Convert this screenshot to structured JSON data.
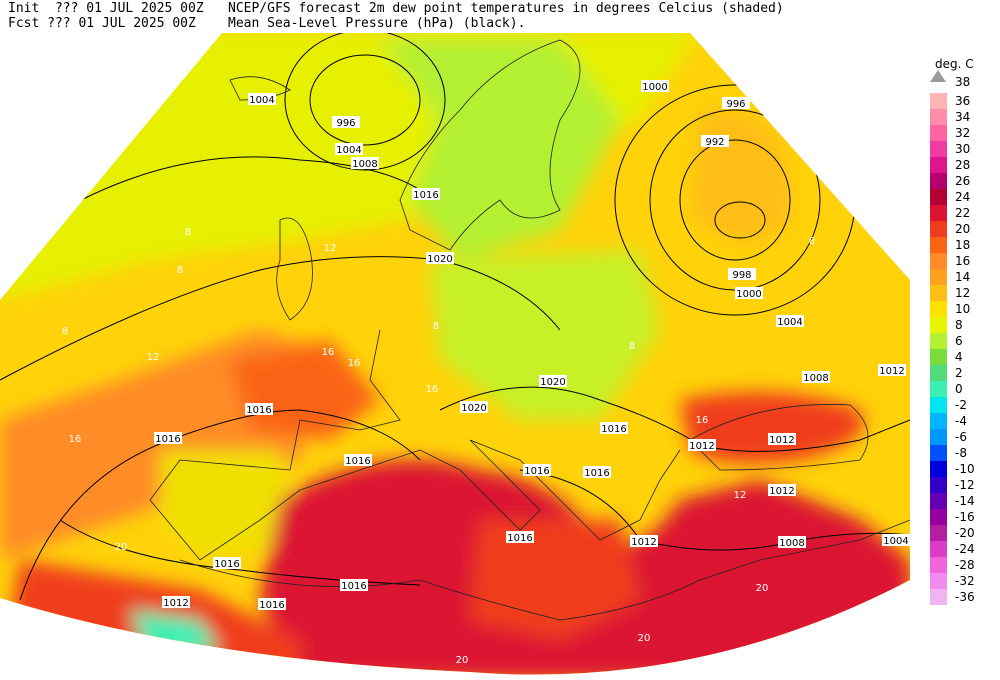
{
  "header": {
    "init": "Init  ??? 01 JUL 2025 00Z",
    "fcst": "Fcst ??? 01 JUL 2025 00Z",
    "title": "NCEP/GFS forecast 2m dew point temperatures in degrees Celcius (shaded)",
    "subtitle": "Mean Sea-Level Pressure (hPa) (black)."
  },
  "colorbar": {
    "unit": "deg. C",
    "top_label": "38",
    "levels": [
      {
        "label": "36",
        "color": "#ffb4b4"
      },
      {
        "label": "34",
        "color": "#ff8ca8"
      },
      {
        "label": "32",
        "color": "#ff64a0"
      },
      {
        "label": "30",
        "color": "#f03ca0"
      },
      {
        "label": "28",
        "color": "#e0148c"
      },
      {
        "label": "26",
        "color": "#b4006e"
      },
      {
        "label": "24",
        "color": "#b40032"
      },
      {
        "label": "22",
        "color": "#dc1432"
      },
      {
        "label": "20",
        "color": "#f03c1e"
      },
      {
        "label": "18",
        "color": "#fa6414"
      },
      {
        "label": "16",
        "color": "#ff8c28"
      },
      {
        "label": "14",
        "color": "#ffa01e"
      },
      {
        "label": "12",
        "color": "#ffbe14"
      },
      {
        "label": "10",
        "color": "#ffe100"
      },
      {
        "label": "8",
        "color": "#e6f500"
      },
      {
        "label": "6",
        "color": "#b4f032"
      },
      {
        "label": "4",
        "color": "#78dc3c"
      },
      {
        "label": "2",
        "color": "#50dc78"
      },
      {
        "label": "0",
        "color": "#3cf0b4"
      },
      {
        "label": "-2",
        "color": "#00e6f0"
      },
      {
        "label": "-4",
        "color": "#00b4ff"
      },
      {
        "label": "-6",
        "color": "#0096ff"
      },
      {
        "label": "-8",
        "color": "#0050ff"
      },
      {
        "label": "-10",
        "color": "#0000dc"
      },
      {
        "label": "-12",
        "color": "#3200c8"
      },
      {
        "label": "-14",
        "color": "#6400b4"
      },
      {
        "label": "-16",
        "color": "#9600a0"
      },
      {
        "label": "-20",
        "color": "#b41ea0"
      },
      {
        "label": "-24",
        "color": "#dc3cc8"
      },
      {
        "label": "-28",
        "color": "#f064dc"
      },
      {
        "label": "-32",
        "color": "#f08cf0"
      },
      {
        "label": "-36",
        "color": "#f0b4f0"
      }
    ]
  },
  "map": {
    "pressure_labels": [
      "1004",
      "996",
      "1004",
      "1008",
      "1000",
      "996",
      "992",
      "998",
      "1000",
      "1004",
      "1008",
      "1012",
      "1016",
      "1016",
      "1016",
      "1020",
      "1020",
      "1016",
      "1012",
      "1012",
      "1012",
      "1016",
      "1016",
      "1016",
      "1012",
      "1016",
      "1016",
      "1016",
      "1012",
      "1008",
      "1004",
      "1016",
      "1020"
    ],
    "dewpoint_labels": [
      "8",
      "8",
      "8",
      "12",
      "16",
      "16",
      "16",
      "16",
      "12",
      "8",
      "8",
      "12",
      "20",
      "20",
      "20",
      "20",
      "16",
      "8"
    ]
  }
}
